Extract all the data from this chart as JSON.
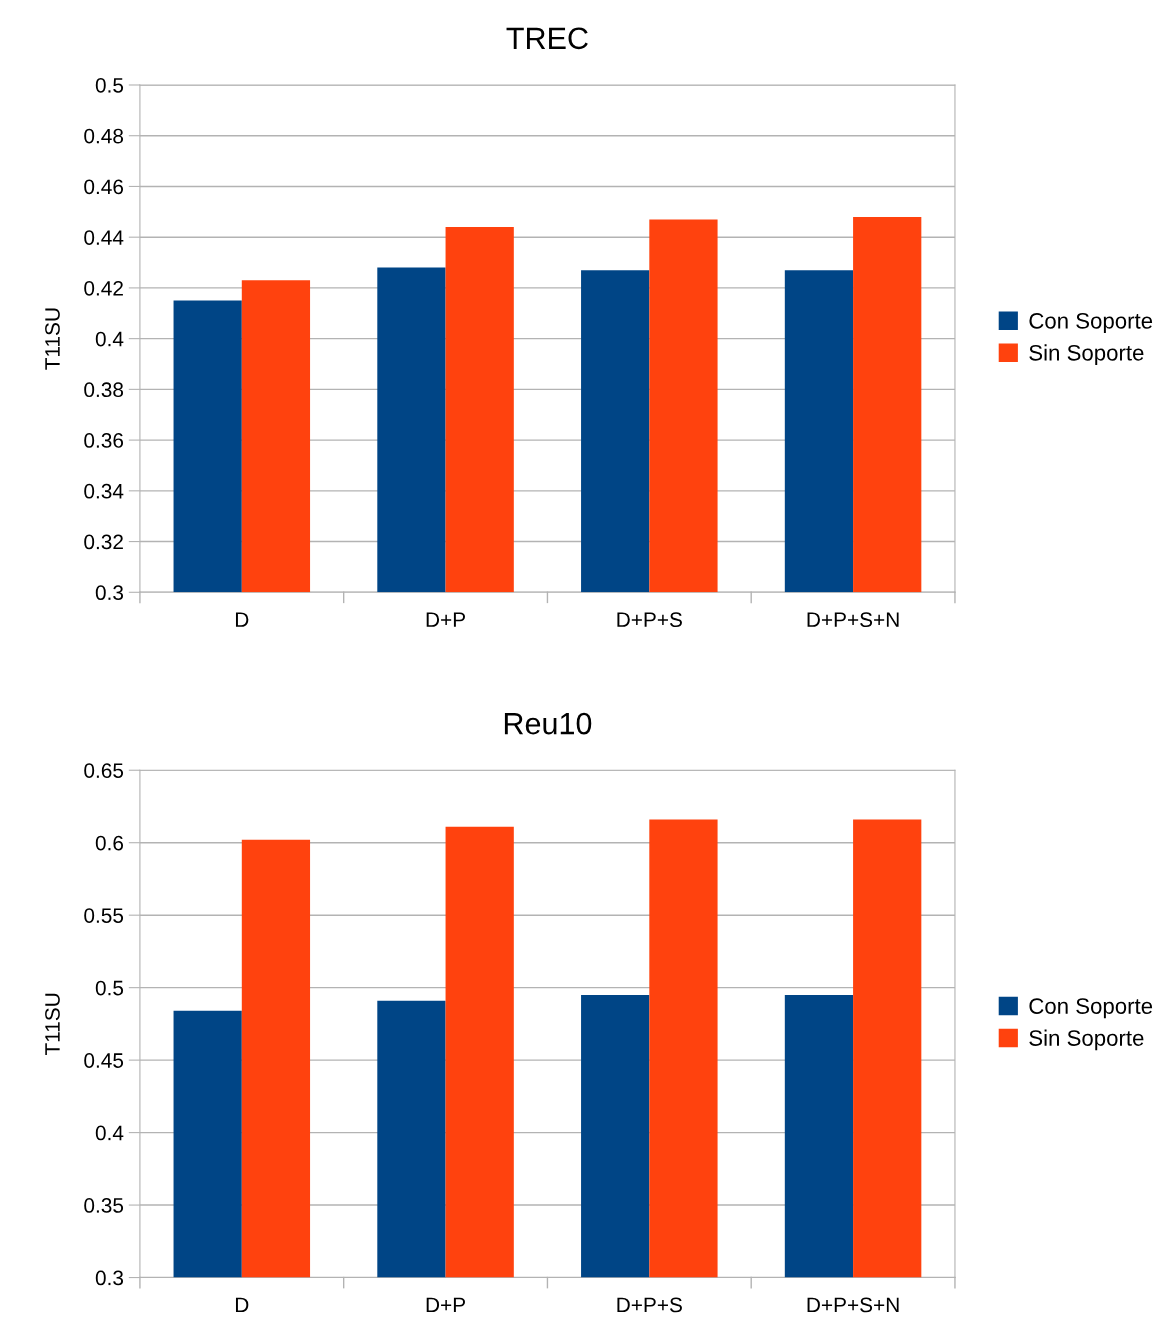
{
  "chart_data": [
    {
      "type": "bar",
      "title": "TREC",
      "ylabel": "T11SU",
      "categories": [
        "D",
        "D+P",
        "D+P+S",
        "D+P+S+N"
      ],
      "series": [
        {
          "name": "Con Soporte",
          "color": "#004586",
          "values": [
            0.415,
            0.428,
            0.427,
            0.427
          ]
        },
        {
          "name": "Sin Soporte",
          "color": "#ff420e",
          "values": [
            0.423,
            0.444,
            0.447,
            0.448
          ]
        }
      ],
      "ylim": [
        0.3,
        0.5
      ],
      "yticks": [
        0.3,
        0.32,
        0.34,
        0.36,
        0.38,
        0.4,
        0.42,
        0.44,
        0.46,
        0.48,
        0.5
      ],
      "grid": "y",
      "legend": "right"
    },
    {
      "type": "bar",
      "title": "Reu10",
      "ylabel": "T11SU",
      "categories": [
        "D",
        "D+P",
        "D+P+S",
        "D+P+S+N"
      ],
      "series": [
        {
          "name": "Con Soporte",
          "color": "#004586",
          "values": [
            0.484,
            0.491,
            0.495,
            0.495
          ]
        },
        {
          "name": "Sin Soporte",
          "color": "#ff420e",
          "values": [
            0.602,
            0.611,
            0.616,
            0.616
          ]
        }
      ],
      "ylim": [
        0.3,
        0.65
      ],
      "yticks": [
        0.3,
        0.35,
        0.4,
        0.45,
        0.5,
        0.55,
        0.6,
        0.65
      ],
      "grid": "y",
      "legend": "right"
    }
  ]
}
